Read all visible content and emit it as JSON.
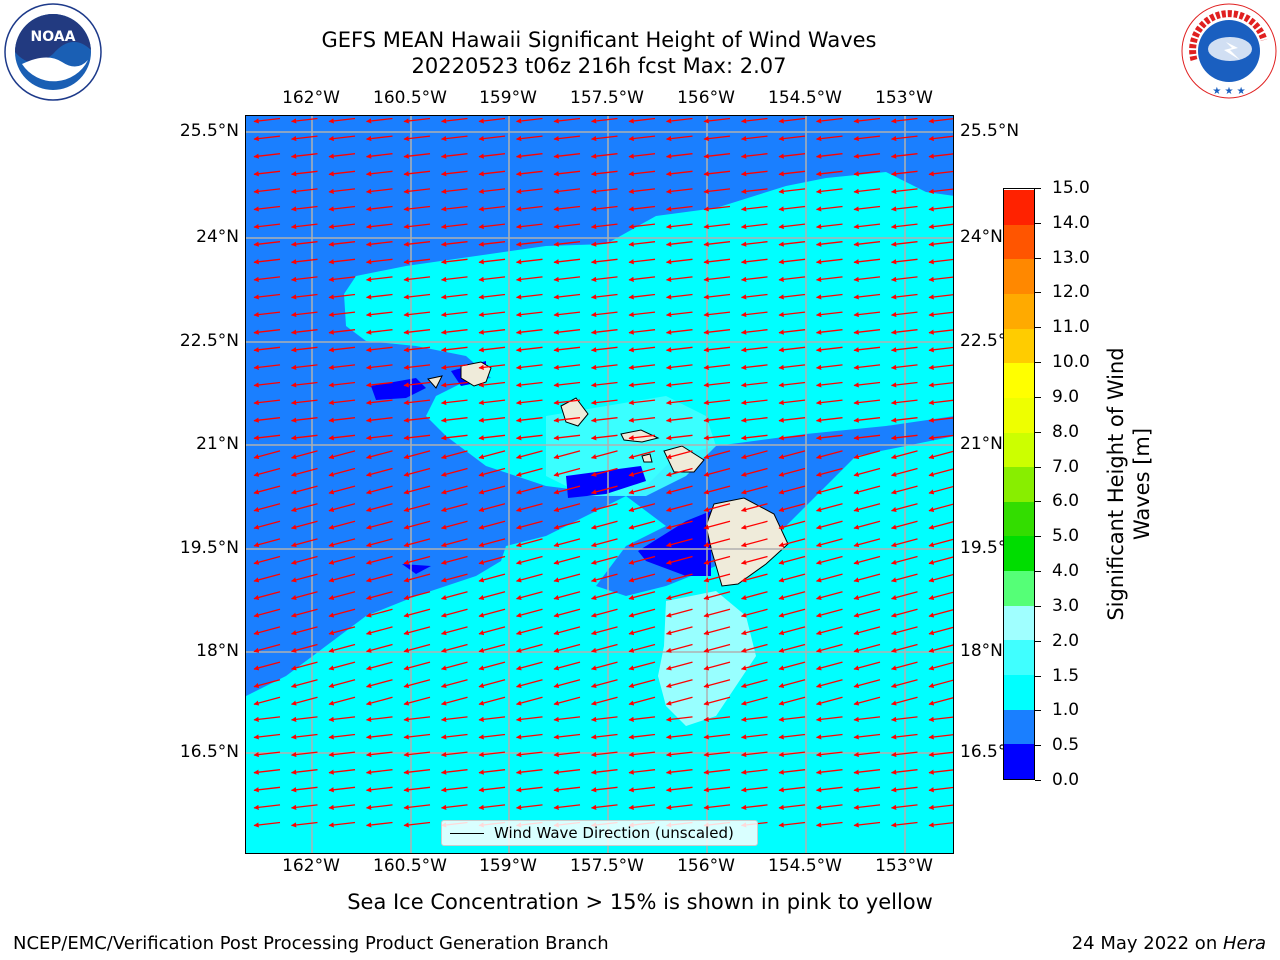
{
  "title_line1": "GEFS MEAN Hawaii Significant Height of Wind Waves",
  "title_line2": "20220523 t06z 216h fcst   Max: 2.07",
  "lon_ticks": [
    "162°W",
    "160.5°W",
    "159°W",
    "157.5°W",
    "156°W",
    "154.5°W",
    "153°W"
  ],
  "lat_ticks": [
    "25.5°N",
    "24°N",
    "22.5°N",
    "21°N",
    "19.5°N",
    "18°N",
    "16.5°N"
  ],
  "legend_label": "Wind Wave Direction (unscaled)",
  "colorbar": {
    "label_line1": "Significant Height of Wind",
    "label_line2": "Waves [m]",
    "ticks": [
      "0.0",
      "0.5",
      "1.0",
      "1.5",
      "2.0",
      "3.0",
      "4.0",
      "5.0",
      "6.0",
      "7.0",
      "8.0",
      "9.0",
      "10.0",
      "11.0",
      "12.0",
      "13.0",
      "14.0",
      "15.0"
    ],
    "colors": [
      "#0000ff",
      "#1a7fff",
      "#00ffff",
      "#40ffff",
      "#a0ffff",
      "#55ff77",
      "#00dd00",
      "#33dd00",
      "#88ee00",
      "#ccff00",
      "#eeff00",
      "#ffff00",
      "#ffcc00",
      "#ffaa00",
      "#ff8800",
      "#ff5500",
      "#ff2200"
    ]
  },
  "sea_ice_note": "Sea Ice Concentration > 15% is shown in pink to yellow",
  "footer_left": "NCEP/EMC/Verification Post Processing Product Generation Branch",
  "footer_right_prefix": "24 May 2022 on ",
  "footer_right_host": "Hera",
  "logos": {
    "left": "noaa-logo",
    "right": "national-weather-service-logo"
  },
  "logo_text": {
    "noaa": "NOAA",
    "nws": "NATIONAL WEATHER SERVICE"
  },
  "map_colors": {
    "ocean_low": "#1a7fff",
    "ocean_mid": "#00ffff",
    "ocean_high": "#a0ffff",
    "very_low": "#0000ff",
    "land": "#efebda",
    "arrows": "#ff0000",
    "grid": "#b0b0b0"
  }
}
